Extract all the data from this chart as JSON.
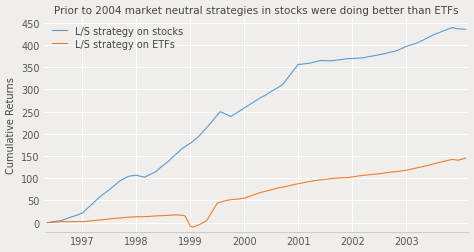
{
  "title": "Prior to 2004 market neutral strategies in stocks were doing better than ETFs",
  "ylabel": "Cumulative Returns",
  "xlabel": "",
  "legend": [
    "L/S strategy on stocks",
    "L/S strategy on ETFs"
  ],
  "line_colors": [
    "#5b9bd5",
    "#ed7d31"
  ],
  "background_color": "#f0eeeb",
  "plot_bg_color": "#f0eeeb",
  "ylim": [
    -20,
    460
  ],
  "xlim_start": 1996.3,
  "xlim_end": 2004.15,
  "xticks": [
    1997,
    1998,
    1999,
    2000,
    2001,
    2002,
    2003
  ],
  "yticks": [
    0,
    50,
    100,
    150,
    200,
    250,
    300,
    350,
    400,
    450
  ],
  "title_fontsize": 7.5,
  "label_fontsize": 7,
  "tick_fontsize": 7,
  "legend_fontsize": 7,
  "grid_color": "#ffffff",
  "spine_color": "#cccccc"
}
